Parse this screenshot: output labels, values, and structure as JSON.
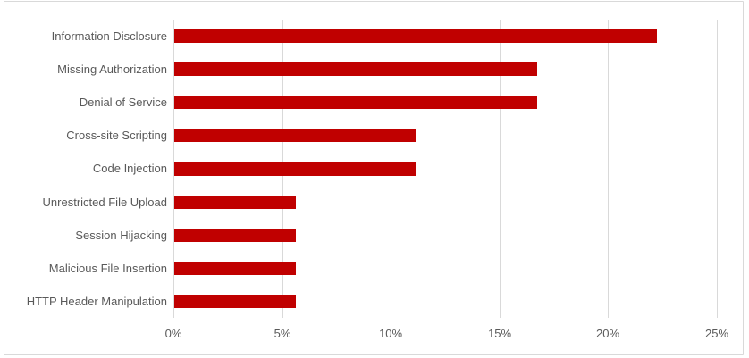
{
  "chart_data": {
    "type": "bar",
    "orientation": "horizontal",
    "title": "",
    "xlabel": "",
    "ylabel": "",
    "categories": [
      "Information Disclosure",
      "Missing Authorization",
      "Denial of Service",
      "Cross-site Scripting",
      "Code Injection",
      "Unrestricted File Upload",
      "Session Hijacking",
      "Malicious File Insertion",
      "HTTP Header Manipulation"
    ],
    "values": [
      22.2,
      16.7,
      16.7,
      11.1,
      11.1,
      5.6,
      5.6,
      5.6,
      5.6
    ],
    "xlim": [
      0,
      25
    ],
    "x_ticks": [
      0,
      5,
      10,
      15,
      20,
      25
    ],
    "x_tick_labels": [
      "0%",
      "5%",
      "10%",
      "15%",
      "20%",
      "25%"
    ],
    "grid": true,
    "legend": "none",
    "colors": {
      "bar": "#C00000",
      "gridline": "#D9D9D9",
      "frame": "#D9D9D9",
      "label": "#595959"
    }
  }
}
